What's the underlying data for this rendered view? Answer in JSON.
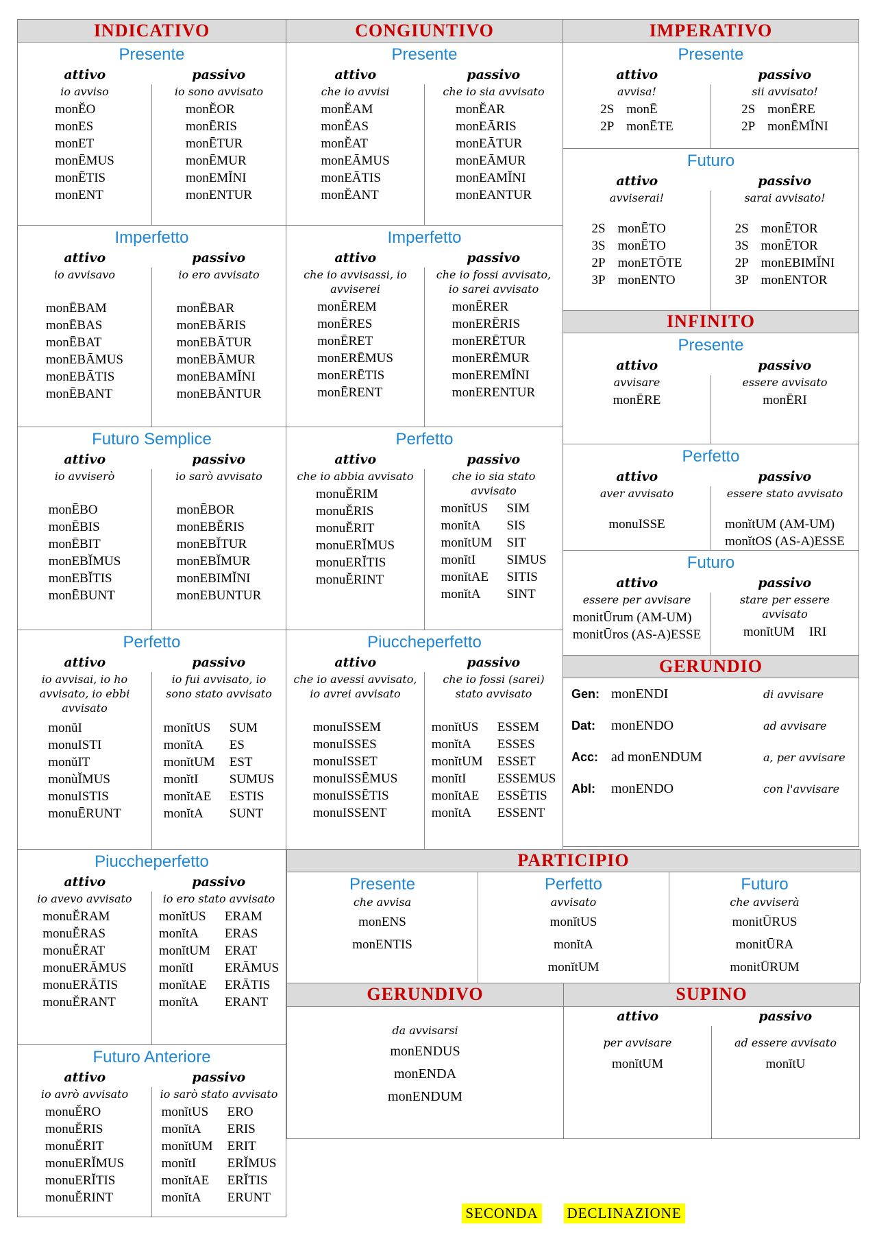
{
  "labels": {
    "attivo": "attivo",
    "passivo": "passivo"
  },
  "colors": {
    "header_red": "#C80000",
    "subtitle_blue": "#1E86D2",
    "header_bar_gray": "#DBDBDB",
    "highlight_yellow": "#FFFF00"
  },
  "footer": {
    "word1": "SECONDA",
    "word2": "DECLINAZIONE"
  },
  "indicativo": {
    "title": "INDICATIVO",
    "presente": {
      "title": "Presente",
      "attivo_gloss": "io avviso",
      "attivo_forms": [
        "monĔO",
        "monES",
        "monET",
        "monĒMUS",
        "monĒTIS",
        "monENT"
      ],
      "passivo_gloss": "io sono avvisato",
      "passivo_forms": [
        "monĔOR",
        "monĒRIS",
        "monĒTUR",
        "monĒMUR",
        "monEMĬNI",
        "monENTUR"
      ]
    },
    "imperfetto": {
      "title": "Imperfetto",
      "attivo_gloss": "io avvisavo",
      "attivo_forms": [
        "monĒBAM",
        "monĒBAS",
        "monĒBAT",
        "monEBĀMUS",
        "monEBĀTIS",
        "monĒBANT"
      ],
      "passivo_gloss": "io ero avvisato",
      "passivo_forms": [
        "monĒBAR",
        "monEBĀRIS",
        "monEBĀTUR",
        "monEBĀMUR",
        "monEBAMĬNI",
        "monEBĀNTUR"
      ]
    },
    "futuro_semplice": {
      "title": "Futuro Semplice",
      "attivo_gloss": "io avviserò",
      "attivo_forms": [
        "monĒBO",
        "monĒBIS",
        "monĒBIT",
        "monEBĬMUS",
        "monEBĬTIS",
        "monĒBUNT"
      ],
      "passivo_gloss": "io sarò avvisato",
      "passivo_forms": [
        "monĒBOR",
        "monEBĔRIS",
        "monEBĬTUR",
        "monEBĬMUR",
        "monEBIMĬNI",
        "monEBUNTUR"
      ]
    },
    "perfetto": {
      "title": "Perfetto",
      "attivo_gloss": "io avvisai, io ho avvisato, io ebbi avvisato",
      "attivo_forms": [
        "monŭI",
        "monuISTI",
        "monŭIT",
        "monùĬMUS",
        "monuISTIS",
        "monuĒRUNT"
      ],
      "passivo_gloss": "io fui avvisato, io sono stato avvisato",
      "passivo_forms": [
        "monĭtUS|SUM",
        "monĭtA|ES",
        "monĭtUM|EST",
        "monĭtI|SUMUS",
        "monĭtAE|ESTIS",
        "monĭtA|SUNT"
      ]
    },
    "piuccheperfetto": {
      "title": "Piuccheperfetto",
      "attivo_gloss": "io avevo avvisato",
      "attivo_forms": [
        "monuĔRAM",
        "monuĔRAS",
        "monuĔRAT",
        "monuERĀMUS",
        "monuERĀTIS",
        "monuĔRANT"
      ],
      "passivo_gloss": "io ero stato avvisato",
      "passivo_forms": [
        "monĭtUS|ERAM",
        "monĭtA|ERAS",
        "monĭtUM|ERAT",
        "monĭtI|ERĀMUS",
        "monĭtAE|ERĀTIS",
        "monĭtA|ERANT"
      ]
    },
    "futuro_anteriore": {
      "title": "Futuro Anteriore",
      "attivo_gloss": "io avrò avvisato",
      "attivo_forms": [
        "monuĔRO",
        "monuĔRIS",
        "monuĔRIT",
        "monuERĬMUS",
        "monuERĬTIS",
        "monuĔRINT"
      ],
      "passivo_gloss": "io sarò stato avvisato",
      "passivo_forms": [
        "monĭtUS|ERO",
        "monĭtA|ERIS",
        "monĭtUM|ERIT",
        "monĭtI|ERĬMUS",
        "monĭtAE|ERĬTIS",
        "monĭtA|ERUNT"
      ]
    }
  },
  "congiuntivo": {
    "title": "CONGIUNTIVO",
    "presente": {
      "title": "Presente",
      "attivo_gloss": "che io avvisi",
      "attivo_forms": [
        "monĔAM",
        "monĔAS",
        "monĔAT",
        "monEĀMUS",
        "monEĀTIS",
        "monĔANT"
      ],
      "passivo_gloss": "che io sia avvisato",
      "passivo_forms": [
        "monĔAR",
        "monEĀRIS",
        "monEĀTUR",
        "monEĀMUR",
        "monEAMĬNI",
        "monEANTUR"
      ]
    },
    "imperfetto": {
      "title": "Imperfetto",
      "attivo_gloss": "che io avvisassi, io avviserei",
      "attivo_forms": [
        "monĒREM",
        "monĒRES",
        "monĒRET",
        "monERĒMUS",
        "monERĒTIS",
        "monĒRENT"
      ],
      "passivo_gloss": "che io fossi avvisato, io sarei avvisato",
      "passivo_forms": [
        "monĒRER",
        "monERĒRIS",
        "monERĒTUR",
        "monERĒMUR",
        "monEREMĬNI",
        "monERENTUR"
      ]
    },
    "perfetto": {
      "title": "Perfetto",
      "attivo_gloss": "che io abbia avvisato",
      "attivo_forms": [
        "monuĔRIM",
        "monuĔRIS",
        "monuĔRIT",
        "monuERĬMUS",
        "monuERĬTIS",
        "monuĔRINT"
      ],
      "passivo_gloss": "che io sia stato avvisato",
      "passivo_forms": [
        "monĭtUS|SIM",
        "monĭtA|SIS",
        "monĭtUM|SIT",
        "monĭtI|SIMUS",
        "monĭtAE|SITIS",
        "monĭtA|SINT"
      ]
    },
    "piuccheperfetto": {
      "title": "Piuccheperfetto",
      "attivo_gloss": "che io avessi avvisato, io avrei avvisato",
      "attivo_forms": [
        "monuISSEM",
        "monuISSES",
        "monuISSET",
        "monuISSĒMUS",
        "monuISSĒTIS",
        "monuISSENT"
      ],
      "passivo_gloss": "che io fossi (sarei) stato avvisato",
      "passivo_forms": [
        "monĭtUS|ESSEM",
        "monĭtA|ESSES",
        "monĭtUM|ESSET",
        "monĭtI|ESSEMUS",
        "monĭtAE|ESSĒTIS",
        "monĭtA|ESSENT"
      ]
    }
  },
  "imperativo": {
    "title": "IMPERATIVO",
    "presente": {
      "title": "Presente",
      "attivo_gloss": "avvisa!",
      "attivo_forms": [
        "2S|monĒ",
        "2P|monĒTE"
      ],
      "passivo_gloss": "sii avvisato!",
      "passivo_forms": [
        "2S|monĒRE",
        "2P|monĒMĬNI"
      ]
    },
    "futuro": {
      "title": "Futuro",
      "attivo_gloss": "avviserai!",
      "attivo_forms": [
        "2S|monĒTO",
        "3S|monĒTO",
        "2P|monETŌTE",
        "3P|monENTO"
      ],
      "passivo_gloss": "sarai avvisato!",
      "passivo_forms": [
        "2S|monĒTOR",
        "3S|monĒTOR",
        "2P|monEBIMĬNI",
        "3P|monENTOR"
      ]
    }
  },
  "infinito": {
    "title": "INFINITO",
    "presente": {
      "title": "Presente",
      "attivo_gloss": "avvisare",
      "attivo_forms": [
        "monĒRE"
      ],
      "passivo_gloss": "essere avvisato",
      "passivo_forms": [
        "monĒRI"
      ]
    },
    "perfetto": {
      "title": "Perfetto",
      "attivo_gloss": "aver avvisato",
      "attivo_forms": [
        "monuISSE"
      ],
      "passivo_gloss": "essere stato avvisato",
      "passivo_forms": [
        "monĭtUM (AM-UM)",
        "monĭtOS (AS-A)ESSE"
      ]
    },
    "futuro": {
      "title": "Futuro",
      "attivo_gloss": "essere per avvisare",
      "attivo_forms": [
        "monitŪrum (AM-UM)",
        "monitŪros (AS-A)ESSE"
      ],
      "passivo_gloss": "stare per essere avvisato",
      "passivo_forms": [
        "monĭtUM|IRI"
      ]
    }
  },
  "gerundio": {
    "title": "GERUNDIO",
    "rows": [
      "Gen:|monENDI|di avvisare",
      "Dat:|monENDO|ad avvisare",
      "Acc:|ad monENDUM|a, per avvisare",
      "Abl:|monENDO|con l'avvisare"
    ]
  },
  "participio": {
    "title": "PARTICIPIO",
    "presente": {
      "title": "Presente",
      "gloss": "che avvisa",
      "forms": [
        "monENS",
        "monENTIS"
      ]
    },
    "perfetto": {
      "title": "Perfetto",
      "gloss": "avvisato",
      "forms": [
        "monĭtUS",
        "monĭtA",
        "monĭtUM"
      ]
    },
    "futuro": {
      "title": "Futuro",
      "gloss": "che avviserà",
      "forms": [
        "monitŪRUS",
        "monitŪRA",
        "monitŪRUM"
      ]
    }
  },
  "gerundivo": {
    "title": "GERUNDIVO",
    "gloss": "da avvisarsi",
    "forms": [
      "monENDUS",
      "monENDA",
      "monENDUM"
    ]
  },
  "supino": {
    "title": "SUPINO",
    "attivo_gloss": "per avvisare",
    "attivo_forms": [
      "monĭtUM"
    ],
    "passivo_gloss": "ad essere avvisato",
    "passivo_forms": [
      "monĭtU"
    ]
  }
}
